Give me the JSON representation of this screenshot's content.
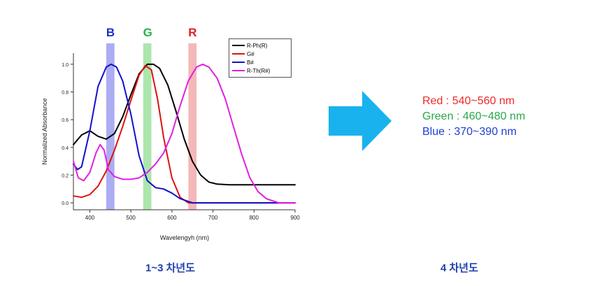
{
  "chart_data": {
    "type": "line",
    "ylabel": "Normalized Absorbance",
    "xlabel": "Wavelengyh (nm)",
    "xlim": [
      360,
      900
    ],
    "ylim": [
      -0.05,
      1.08
    ],
    "xticks": [
      400,
      500,
      600,
      700,
      800,
      900
    ],
    "yticks": [
      "0.0",
      "0.2",
      "0.4",
      "0.6",
      "0.8",
      "1.0"
    ],
    "ytick_values": [
      0.0,
      0.2,
      0.4,
      0.6,
      0.8,
      1.0
    ],
    "bands": [
      {
        "label": "B",
        "range": [
          440,
          460
        ],
        "color": "#9090ee",
        "label_color": "#1a2fd0"
      },
      {
        "label": "G",
        "range": [
          530,
          550
        ],
        "color": "#90dd90",
        "label_color": "#22b24a"
      },
      {
        "label": "R",
        "range": [
          640,
          660
        ],
        "color": "#f0a0a0",
        "label_color": "#e02020"
      }
    ],
    "series": [
      {
        "name": "R-Ph(R)",
        "color": "#000000",
        "x": [
          360,
          380,
          400,
          420,
          440,
          460,
          480,
          500,
          520,
          540,
          555,
          570,
          590,
          610,
          630,
          650,
          670,
          690,
          710,
          740,
          800,
          900
        ],
        "y": [
          0.42,
          0.49,
          0.52,
          0.48,
          0.46,
          0.5,
          0.62,
          0.78,
          0.93,
          1.0,
          1.0,
          0.97,
          0.85,
          0.66,
          0.46,
          0.3,
          0.2,
          0.15,
          0.135,
          0.13,
          0.13,
          0.13
        ]
      },
      {
        "name": "G#",
        "color": "#dd1111",
        "x": [
          360,
          380,
          400,
          420,
          440,
          460,
          480,
          500,
          520,
          535,
          550,
          565,
          580,
          600,
          620,
          640,
          700,
          900
        ],
        "y": [
          0.05,
          0.04,
          0.06,
          0.12,
          0.23,
          0.38,
          0.55,
          0.74,
          0.92,
          0.99,
          0.96,
          0.75,
          0.47,
          0.18,
          0.04,
          0.0,
          0.0,
          0.0
        ]
      },
      {
        "name": "B#",
        "color": "#1111cc",
        "x": [
          360,
          370,
          380,
          400,
          420,
          440,
          452,
          465,
          480,
          500,
          520,
          540,
          560,
          580,
          600,
          620,
          650,
          700,
          900
        ],
        "y": [
          0.28,
          0.24,
          0.26,
          0.52,
          0.84,
          0.98,
          1.0,
          0.98,
          0.88,
          0.64,
          0.34,
          0.16,
          0.11,
          0.1,
          0.07,
          0.03,
          0.0,
          0.0,
          0.0
        ]
      },
      {
        "name": "R-Th(R#)",
        "color": "#e020e0",
        "x": [
          360,
          372,
          385,
          400,
          415,
          425,
          435,
          445,
          460,
          480,
          500,
          520,
          540,
          560,
          580,
          600,
          620,
          640,
          660,
          675,
          690,
          710,
          730,
          750,
          770,
          790,
          810,
          830,
          860,
          900
        ],
        "y": [
          0.3,
          0.18,
          0.16,
          0.22,
          0.36,
          0.42,
          0.38,
          0.24,
          0.19,
          0.17,
          0.17,
          0.18,
          0.22,
          0.28,
          0.36,
          0.5,
          0.7,
          0.88,
          0.98,
          1.0,
          0.98,
          0.9,
          0.75,
          0.55,
          0.35,
          0.18,
          0.08,
          0.03,
          0.0,
          0.0
        ]
      }
    ]
  },
  "captions": {
    "left": "1~3 차년도",
    "right": "4 차년도"
  },
  "specs": [
    {
      "text": "Red : 540~560 nm",
      "color": "#ee2a2a"
    },
    {
      "text": "Green : 460~480 nm",
      "color": "#2aa84a"
    },
    {
      "text": "Blue : 370~390 nm",
      "color": "#1f3fd0"
    }
  ],
  "arrow": {
    "icon": "right-arrow-icon",
    "color": "#1ab2ee"
  }
}
